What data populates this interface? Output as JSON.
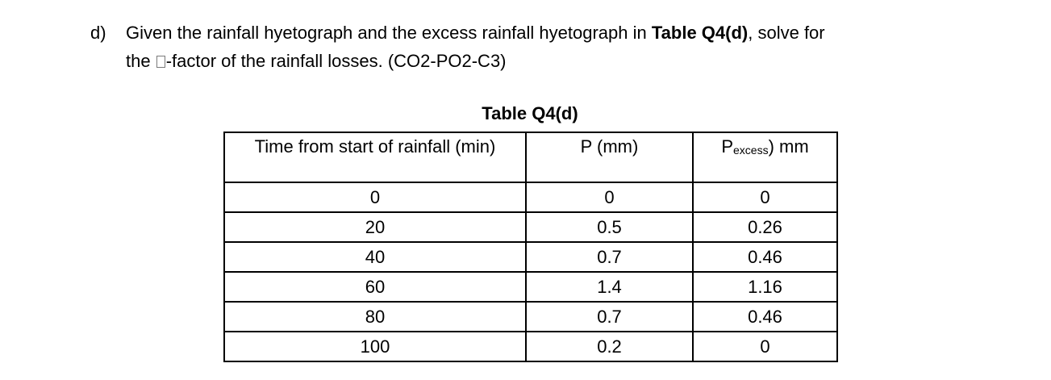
{
  "question": {
    "label": "d)",
    "line1_pre": "Given the rainfall hyetograph and the excess rainfall hyetograph in ",
    "line1_bold": "Table Q4(d)",
    "line1_post": ", solve for",
    "line2_pre": "the ",
    "line2_post": "-factor of the rainfall losses. (CO2-PO2-C3)",
    "missing_glyph": "phi-index-symbol (rendered as missing-glyph box)"
  },
  "table": {
    "caption": "Table Q4(d)",
    "headers": {
      "time": "Time from start of rainfall (min)",
      "p": "P (mm)",
      "pexcess_main": "P",
      "pexcess_sub": "excess",
      "pexcess_tail": ") mm"
    },
    "rows": [
      {
        "time": "0",
        "p": "0",
        "pexcess": "0"
      },
      {
        "time": "20",
        "p": "0.5",
        "pexcess": "0.26"
      },
      {
        "time": "40",
        "p": "0.7",
        "pexcess": "0.46"
      },
      {
        "time": "60",
        "p": "1.4",
        "pexcess": "1.16"
      },
      {
        "time": "80",
        "p": "0.7",
        "pexcess": "0.46"
      },
      {
        "time": "100",
        "p": "0.2",
        "pexcess": "0"
      }
    ]
  }
}
